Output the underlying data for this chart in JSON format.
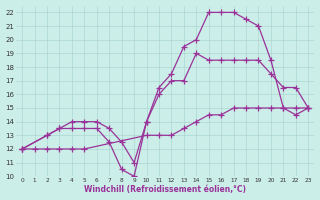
{
  "bg_color": "#cceee8",
  "grid_color": "#aad8d0",
  "line_color": "#993399",
  "marker": "+",
  "markersize": 4,
  "linewidth": 0.9,
  "xlim": [
    -0.5,
    23.5
  ],
  "ylim": [
    10,
    22.5
  ],
  "yticks": [
    10,
    11,
    12,
    13,
    14,
    15,
    16,
    17,
    18,
    19,
    20,
    21,
    22
  ],
  "xticks": [
    0,
    1,
    2,
    3,
    4,
    5,
    6,
    7,
    8,
    9,
    10,
    11,
    12,
    13,
    14,
    15,
    16,
    17,
    18,
    19,
    20,
    21,
    22,
    23
  ],
  "xlabel": "Windchill (Refroidissement éolien,°C)",
  "line1_x": [
    0,
    1,
    2,
    3,
    4,
    5,
    10,
    11,
    12,
    13,
    14,
    15,
    16,
    17,
    18,
    19,
    20,
    21,
    22,
    23
  ],
  "line1_y": [
    12,
    12,
    12,
    12,
    12,
    12,
    13,
    13,
    13,
    13.5,
    14,
    14.5,
    14.5,
    15,
    15,
    15,
    15,
    15,
    15,
    15
  ],
  "line2_x": [
    0,
    2,
    3,
    4,
    5,
    6,
    7,
    8,
    9,
    10,
    11,
    12,
    13,
    14,
    15,
    16,
    17,
    18,
    19,
    20,
    21,
    22,
    23
  ],
  "line2_y": [
    12,
    13,
    13.5,
    14,
    14,
    14,
    13.5,
    12.5,
    11,
    14,
    16,
    17,
    17,
    19,
    18.5,
    18.5,
    18.5,
    18.5,
    18.5,
    17.5,
    16.5,
    16.5,
    15
  ],
  "line3_x": [
    0,
    2,
    3,
    4,
    5,
    6,
    7,
    8,
    9,
    10,
    11,
    12,
    13,
    14,
    15,
    16,
    17,
    18,
    19,
    20,
    21,
    22,
    23
  ],
  "line3_y": [
    12,
    13,
    13.5,
    13.5,
    13.5,
    13.5,
    12.5,
    10.5,
    10,
    14,
    16.5,
    17.5,
    19.5,
    20,
    22,
    22,
    22,
    21.5,
    21,
    18.5,
    15,
    14.5,
    15
  ]
}
